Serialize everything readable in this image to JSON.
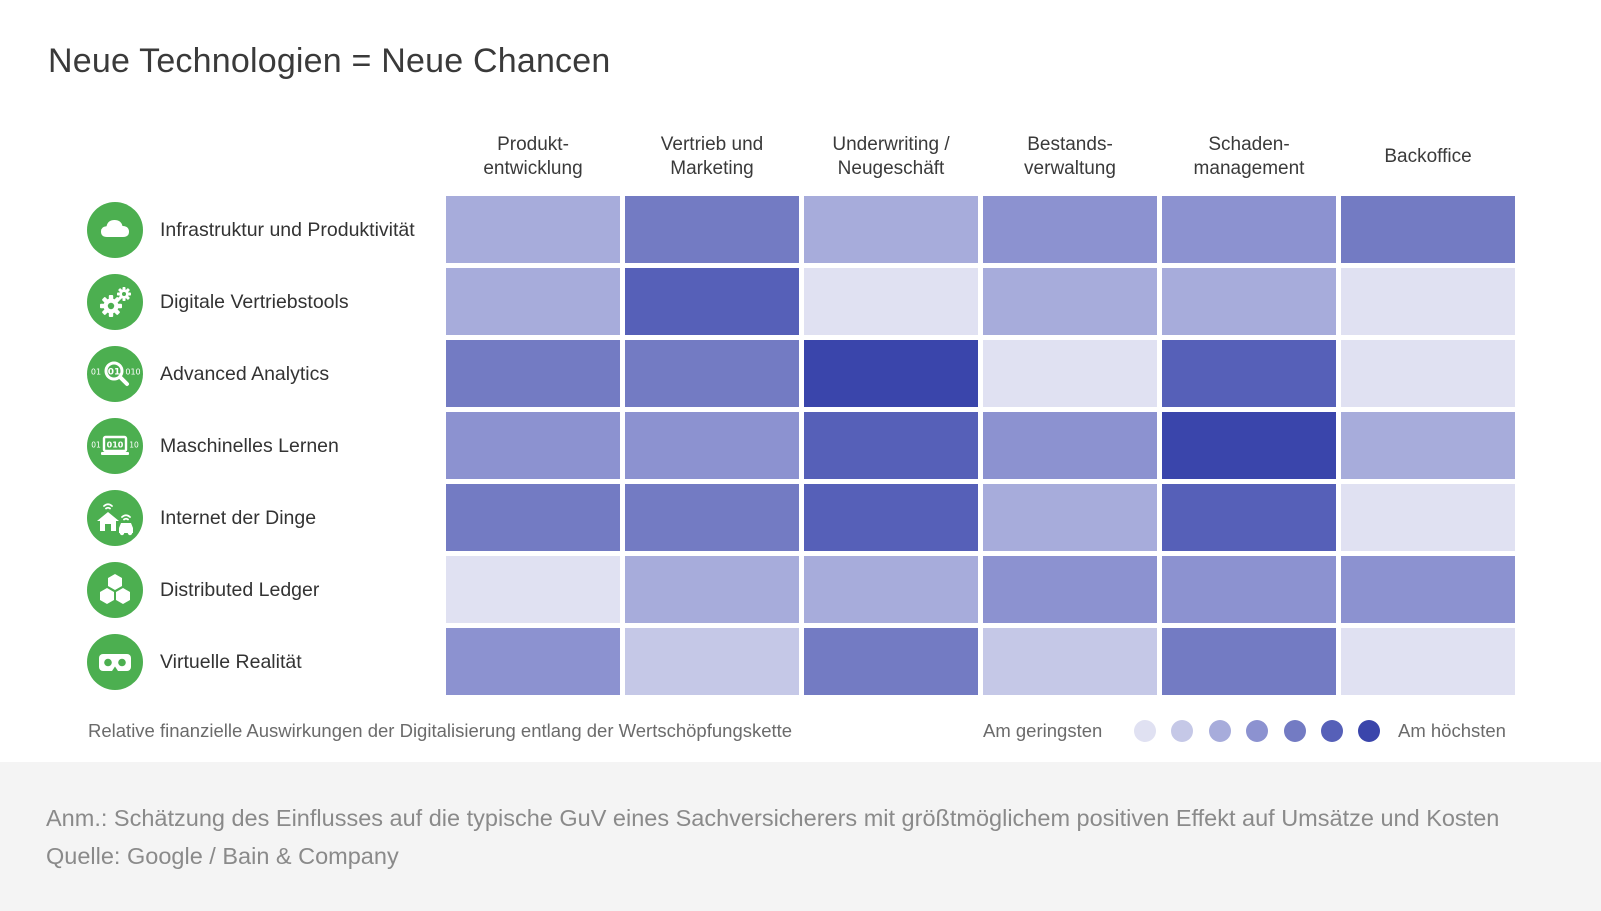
{
  "title": "Neue Technologien = Neue Chancen",
  "subtitle": "Relative finanzielle Auswirkungen der Digitalisierung entlang der Wertschöpfungskette",
  "legend": {
    "min_label": "Am geringsten",
    "max_label": "Am höchsten",
    "colors": [
      "#e0e1f2",
      "#c5c8e7",
      "#a7acdb",
      "#8c92d0",
      "#737bc3",
      "#5660b8",
      "#3a45ab"
    ]
  },
  "icon_color": "#4caf50",
  "footer": {
    "note": "Anm.: Schätzung des Einflusses auf die typische GuV eines Sachversicherers mit größtmöglichem positiven Effekt auf Umsätze und Kosten",
    "source": "Quelle: Google / Bain & Company"
  },
  "chart_data": {
    "type": "heatmap",
    "title": "Neue Technologien = Neue Chancen",
    "scale": [
      1,
      7
    ],
    "columns": [
      "Produkt-\nentwicklung",
      "Vertrieb und\nMarketing",
      "Underwriting /\nNeugeschäft",
      "Bestands-\nverwaltung",
      "Schaden-\nmanagement",
      "Backoffice"
    ],
    "rows": [
      {
        "label": "Infrastruktur und Produktivität",
        "icon": "cloud-icon",
        "values": [
          3,
          5,
          3,
          4,
          4,
          5
        ]
      },
      {
        "label": "Digitale Vertriebstools",
        "icon": "gears-icon",
        "values": [
          3,
          6,
          1,
          3,
          3,
          1
        ]
      },
      {
        "label": "Advanced Analytics",
        "icon": "analytics-magnifier-icon",
        "values": [
          5,
          5,
          7,
          1,
          6,
          1
        ]
      },
      {
        "label": "Maschinelles Lernen",
        "icon": "machine-learning-laptop-icon",
        "values": [
          4,
          4,
          6,
          4,
          7,
          3
        ]
      },
      {
        "label": "Internet der Dinge",
        "icon": "smart-home-car-icon",
        "values": [
          5,
          5,
          6,
          3,
          6,
          1
        ]
      },
      {
        "label": "Distributed Ledger",
        "icon": "blockchain-cubes-icon",
        "values": [
          1,
          3,
          3,
          4,
          4,
          4
        ]
      },
      {
        "label": "Virtuelle Realität",
        "icon": "vr-headset-icon",
        "values": [
          4,
          2,
          5,
          2,
          5,
          1
        ]
      }
    ]
  }
}
